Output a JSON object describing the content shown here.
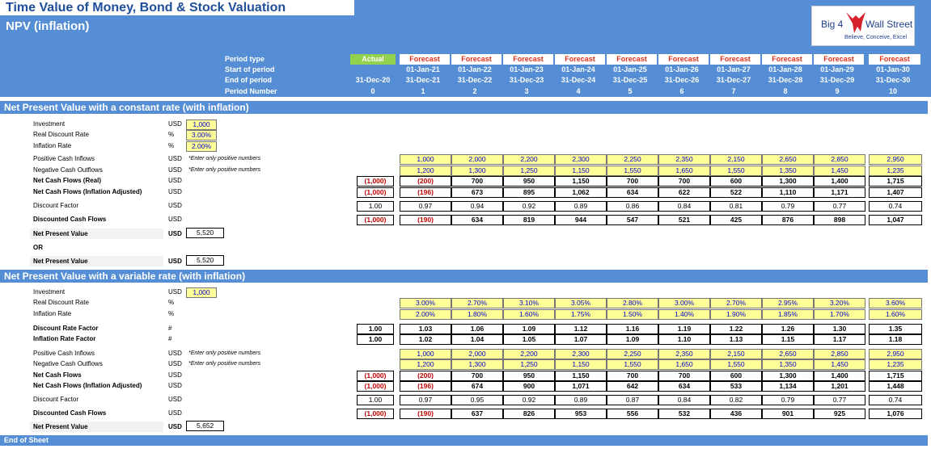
{
  "header": {
    "title": "Time Value of Money, Bond & Stock Valuation",
    "subtitle": "NPV (inflation)",
    "logo_left": "Big 4",
    "logo_right": "Wall Street",
    "logo_tagline": "Believe, Conceive, Excel"
  },
  "periods": {
    "labels": {
      "type": "Period type",
      "start": "Start of period",
      "end": "End of period",
      "number": "Period Number"
    },
    "type": [
      "Actual",
      "Forecast",
      "Forecast",
      "Forecast",
      "Forecast",
      "Forecast",
      "Forecast",
      "Forecast",
      "Forecast",
      "Forecast",
      "Forecast"
    ],
    "start": [
      "",
      "01-Jan-21",
      "01-Jan-22",
      "01-Jan-23",
      "01-Jan-24",
      "01-Jan-25",
      "01-Jan-26",
      "01-Jan-27",
      "01-Jan-28",
      "01-Jan-29",
      "01-Jan-30"
    ],
    "end": [
      "31-Dec-20",
      "31-Dec-21",
      "31-Dec-22",
      "31-Dec-23",
      "31-Dec-24",
      "31-Dec-25",
      "31-Dec-26",
      "31-Dec-27",
      "31-Dec-28",
      "31-Dec-29",
      "31-Dec-30"
    ],
    "number": [
      "0",
      "1",
      "2",
      "3",
      "4",
      "5",
      "6",
      "7",
      "8",
      "9",
      "10"
    ]
  },
  "colors": {
    "band": "#558ED5",
    "input_fill": "#FFFF99",
    "actual_green": "#92D050",
    "negative_red": "#C00000"
  },
  "section1": {
    "title": "Net Present Value with a constant rate (with inflation)",
    "inputs": [
      {
        "label": "Investment",
        "unit": "USD",
        "value": "1,000"
      },
      {
        "label": "Real Discount Rate",
        "unit": "%",
        "value": "3.00%"
      },
      {
        "label": "Inflation Rate",
        "unit": "%",
        "value": "2.00%"
      }
    ],
    "note": "*Enter only positive numbers",
    "rows": [
      {
        "label": "Positive Cash Inflows",
        "unit": "USD",
        "note": true,
        "style": "yel",
        "values": [
          "",
          "1,000",
          "2,000",
          "2,200",
          "2,300",
          "2,250",
          "2,350",
          "2,150",
          "2,650",
          "2,850",
          "2,950"
        ]
      },
      {
        "label": "Negative Cash Outflows",
        "unit": "USD",
        "note": true,
        "style": "yel",
        "values": [
          "",
          "1,200",
          "1,300",
          "1,250",
          "1,150",
          "1,550",
          "1,650",
          "1,550",
          "1,350",
          "1,450",
          "1,235"
        ]
      },
      {
        "label": "Net Cash Flows (Real)",
        "unit": "USD",
        "style": "bold",
        "values": [
          "(1,000)",
          "(200)",
          "700",
          "950",
          "1,150",
          "700",
          "700",
          "600",
          "1,300",
          "1,400",
          "1,715"
        ]
      },
      {
        "label": "Net Cash Flows (Inflation Adjusted)",
        "unit": "USD",
        "style": "bold",
        "values": [
          "(1,000)",
          "(196)",
          "673",
          "895",
          "1,062",
          "634",
          "622",
          "522",
          "1,110",
          "1,171",
          "1,407"
        ]
      },
      {
        "label": "Discount Factor",
        "unit": "USD",
        "style": "norm",
        "values": [
          "1.00",
          "0.97",
          "0.94",
          "0.92",
          "0.89",
          "0.86",
          "0.84",
          "0.81",
          "0.79",
          "0.77",
          "0.74"
        ]
      },
      {
        "label": "Discounted Cash Flows",
        "unit": "USD",
        "style": "bold",
        "values": [
          "(1,000)",
          "(190)",
          "634",
          "819",
          "944",
          "547",
          "521",
          "425",
          "876",
          "898",
          "1,047"
        ]
      }
    ],
    "npv_label": "Net Present Value",
    "npv_unit": "USD",
    "npv_value": "5,520",
    "or_label": "OR",
    "npv2_label": "Net Present Value",
    "npv2_unit": "USD",
    "npv2_value": "5,520"
  },
  "section2": {
    "title": "Net Present Value with a variable rate (with inflation)",
    "investment": {
      "label": "Investment",
      "unit": "USD",
      "value": "1,000"
    },
    "rows": [
      {
        "label": "Real Discount Rate",
        "unit": "%",
        "style": "yel-norm",
        "values": [
          "",
          "3.00%",
          "2.70%",
          "3.10%",
          "3.05%",
          "2.80%",
          "3.00%",
          "2.70%",
          "2.95%",
          "3.20%",
          "3.60%"
        ]
      },
      {
        "label": "Inflation Rate",
        "unit": "%",
        "style": "yel-norm",
        "values": [
          "",
          "2.00%",
          "1.80%",
          "1.60%",
          "1.75%",
          "1.50%",
          "1.40%",
          "1.90%",
          "1.85%",
          "1.70%",
          "1.60%"
        ]
      },
      {
        "label": "Discount Rate Factor",
        "unit": "#",
        "style": "bold",
        "values": [
          "1.00",
          "1.03",
          "1.06",
          "1.09",
          "1.12",
          "1.16",
          "1.19",
          "1.22",
          "1.26",
          "1.30",
          "1.35"
        ]
      },
      {
        "label": "Inflation Rate Factor",
        "unit": "#",
        "style": "bold",
        "values": [
          "1.00",
          "1.02",
          "1.04",
          "1.05",
          "1.07",
          "1.09",
          "1.10",
          "1.13",
          "1.15",
          "1.17",
          "1.18"
        ]
      },
      {
        "label": "Positive Cash Inflows",
        "unit": "USD",
        "note": true,
        "style": "yel",
        "values": [
          "",
          "1,000",
          "2,000",
          "2,200",
          "2,300",
          "2,250",
          "2,350",
          "2,150",
          "2,650",
          "2,850",
          "2,950"
        ]
      },
      {
        "label": "Negative Cash Outflows",
        "unit": "USD",
        "note": true,
        "style": "yel",
        "values": [
          "",
          "1,200",
          "1,300",
          "1,250",
          "1,150",
          "1,550",
          "1,650",
          "1,550",
          "1,350",
          "1,450",
          "1,235"
        ]
      },
      {
        "label": "Net Cash Flows",
        "unit": "USD",
        "style": "bold",
        "values": [
          "(1,000)",
          "(200)",
          "700",
          "950",
          "1,150",
          "700",
          "700",
          "600",
          "1,300",
          "1,400",
          "1,715"
        ]
      },
      {
        "label": "Net Cash Flows (Inflation Adjusted)",
        "unit": "USD",
        "style": "bold",
        "values": [
          "(1,000)",
          "(196)",
          "674",
          "900",
          "1,071",
          "642",
          "634",
          "533",
          "1,134",
          "1,201",
          "1,448"
        ]
      },
      {
        "label": "Discount Factor",
        "unit": "USD",
        "style": "norm",
        "values": [
          "1.00",
          "0.97",
          "0.95",
          "0.92",
          "0.89",
          "0.87",
          "0.84",
          "0.82",
          "0.79",
          "0.77",
          "0.74"
        ]
      },
      {
        "label": "Discounted Cash Flows",
        "unit": "USD",
        "style": "bold",
        "values": [
          "(1,000)",
          "(190)",
          "637",
          "826",
          "953",
          "556",
          "532",
          "436",
          "901",
          "925",
          "1,076"
        ]
      }
    ],
    "npv_label": "Net Present Value",
    "npv_unit": "USD",
    "npv_value": "5,652"
  },
  "footer": {
    "label": "End of Sheet"
  }
}
